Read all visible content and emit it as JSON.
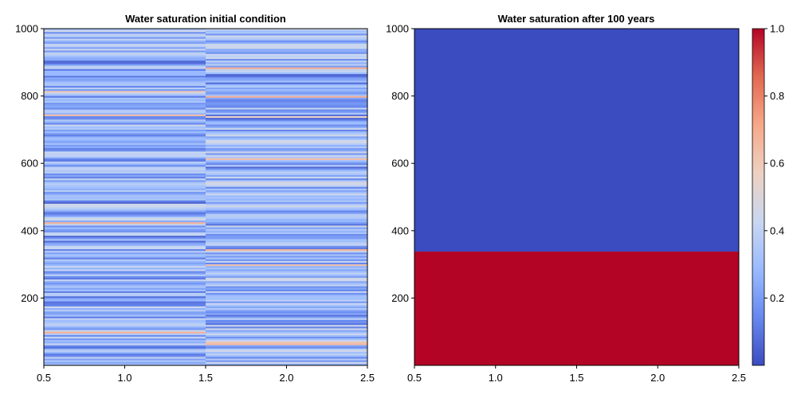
{
  "colors": {
    "colormap": [
      "#3b4cc0",
      "#6788ee",
      "#9abbff",
      "#c9d7f0",
      "#edd1c2",
      "#f7a889",
      "#e26952",
      "#b40426"
    ]
  },
  "chart_data": [
    {
      "type": "heatmap",
      "title": "Water saturation initial condition",
      "xlabel": "",
      "ylabel": "",
      "xlim": [
        0.5,
        2.5
      ],
      "ylim": [
        0,
        1000
      ],
      "x_ticks": [
        "0.5",
        "1.0",
        "1.5",
        "2.0",
        "2.5"
      ],
      "y_ticks": [
        "200",
        "400",
        "600",
        "800",
        "1000"
      ],
      "columns": [
        {
          "x_range": [
            0.5,
            1.5
          ],
          "mean_saturation": 0.28
        },
        {
          "x_range": [
            1.5,
            2.5
          ],
          "mean_saturation": 0.3
        }
      ],
      "pattern": "horizontal banding, values mostly 0.1-0.5 with occasional thin bands near 0.6-0.7"
    },
    {
      "type": "heatmap",
      "title": "Water saturation after 100 years",
      "xlabel": "",
      "ylabel": "",
      "xlim": [
        0.5,
        2.5
      ],
      "ylim": [
        0,
        1000
      ],
      "x_ticks": [
        "0.5",
        "1.0",
        "1.5",
        "2.0",
        "2.5"
      ],
      "y_ticks": [
        "200",
        "400",
        "600",
        "800",
        "1000"
      ],
      "regions": [
        {
          "y_range": [
            0,
            338
          ],
          "value": 1.0
        },
        {
          "y_range": [
            338,
            1000
          ],
          "value": 0.0
        }
      ]
    }
  ],
  "colorbar": {
    "range": [
      0.0,
      1.0
    ],
    "ticks": [
      "0.2",
      "0.4",
      "0.6",
      "0.8",
      "1.0"
    ]
  }
}
